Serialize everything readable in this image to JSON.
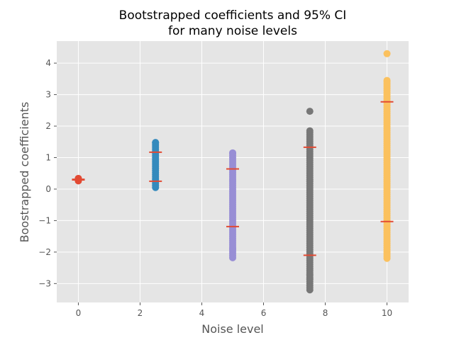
{
  "chart_data": {
    "type": "scatter",
    "title_lines": [
      "Bootstrapped coefficients and 95% CI",
      "for many noise levels"
    ],
    "xlabel": "Noise level",
    "ylabel": "Boostrapped coefficients",
    "xlim": [
      -0.7,
      10.7
    ],
    "ylim": [
      -3.6,
      4.7
    ],
    "x_ticks": [
      0,
      2,
      4,
      6,
      8,
      10
    ],
    "y_ticks": [
      -3,
      -2,
      -1,
      0,
      1,
      2,
      3,
      4
    ],
    "grid": true,
    "legend": "none",
    "series": [
      {
        "x": 0,
        "color": "#E24A33",
        "min": 0.26,
        "max": 0.34,
        "ci": [
          0.29,
          0.31
        ]
      },
      {
        "x": 2.5,
        "color": "#348ABD",
        "min": 0.05,
        "max": 1.48,
        "ci": [
          0.25,
          1.17
        ]
      },
      {
        "x": 5,
        "color": "#988ED5",
        "min": -2.18,
        "max": 1.15,
        "ci": [
          -1.19,
          0.64
        ],
        "outliers": [
          -1.9
        ]
      },
      {
        "x": 7.5,
        "color": "#777777",
        "min": -3.2,
        "max": 1.85,
        "ci": [
          -2.1,
          1.33
        ],
        "outliers": [
          2.47,
          -2.72,
          -2.85
        ]
      },
      {
        "x": 10,
        "color": "#FBC15E",
        "min": -2.2,
        "max": 3.45,
        "ci": [
          -1.03,
          2.77
        ],
        "outliers": [
          4.3
        ]
      }
    ],
    "ci_color": "#E24A33"
  }
}
